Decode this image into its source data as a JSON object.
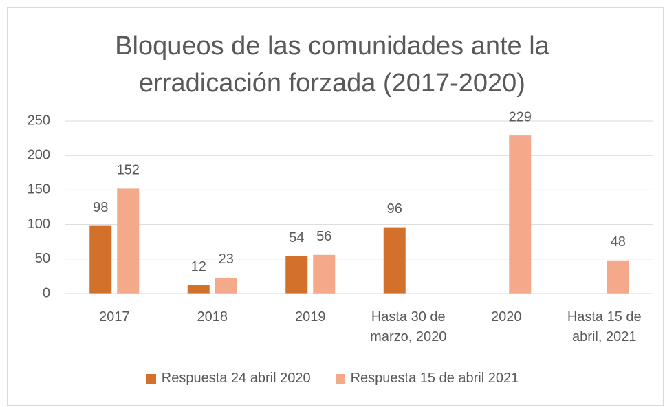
{
  "chart_data": {
    "type": "bar",
    "title": "Bloqueos de las comunidades ante la erradicación forzada (2017-2020)",
    "categories": [
      "2017",
      "2018",
      "2019",
      "Hasta 30 de marzo, 2020",
      "2020",
      "Hasta 15 de abril, 2021"
    ],
    "series": [
      {
        "name": "Respuesta 24 abril 2020",
        "color": "#d2702c",
        "values": [
          98,
          12,
          54,
          96,
          null,
          null
        ]
      },
      {
        "name": "Respuesta 15 de abril 2021",
        "color": "#f4a98a",
        "values": [
          152,
          23,
          56,
          null,
          229,
          48
        ]
      }
    ],
    "ylim": [
      0,
      250
    ],
    "yticks": [
      0,
      50,
      100,
      150,
      200,
      250
    ],
    "grid": true,
    "legend": "bottom"
  }
}
